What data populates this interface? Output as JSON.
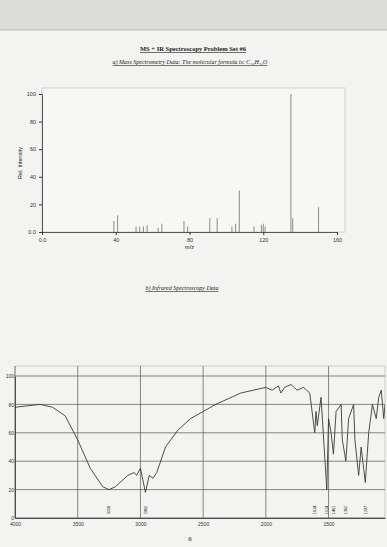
{
  "header": {
    "title": "MS + IR Spectroscopy Problem Set #6"
  },
  "footer": {
    "page": "6"
  },
  "chart_data": [
    {
      "type": "stem",
      "title": "a) Mass Spectrometry Data: The molecular formula is: C₁₀H₁₄O",
      "x_label": "m/z",
      "y_label": "Rel. Intensity",
      "x": [
        39,
        41,
        51,
        53,
        55,
        57,
        63,
        65,
        77,
        79,
        91,
        95,
        103,
        105,
        107,
        115,
        119,
        120,
        121,
        135,
        136,
        150
      ],
      "values": [
        8,
        12,
        4,
        4,
        4,
        5,
        3,
        6,
        8,
        4,
        10,
        10,
        4,
        6,
        30,
        4,
        5,
        6,
        4,
        100,
        10,
        18
      ],
      "color": "#8a8a8a",
      "xlim": [
        0,
        160
      ],
      "xticks": [
        {
          "value": 0,
          "label": "0.0"
        },
        40,
        80,
        120,
        160
      ],
      "ylim": [
        0,
        100
      ],
      "yticks": [
        {
          "value": 0,
          "label": "0.0"
        },
        20,
        40,
        60,
        80,
        100
      ],
      "grid": false
    },
    {
      "type": "line",
      "title": "b) Infrared Spectroscopy Data",
      "x": [
        4000,
        3900,
        3800,
        3700,
        3600,
        3500,
        3400,
        3300,
        3250,
        3200,
        3100,
        3050,
        3030,
        3000,
        2960,
        2930,
        2900,
        2870,
        2800,
        2700,
        2600,
        2500,
        2400,
        2300,
        2200,
        2100,
        2000,
        1950,
        1900,
        1880,
        1850,
        1800,
        1750,
        1700,
        1650,
        1610,
        1600,
        1590,
        1560,
        1514,
        1500,
        1480,
        1461,
        1440,
        1400,
        1390,
        1362,
        1340,
        1300,
        1290,
        1260,
        1240,
        1207,
        1180,
        1150,
        1120,
        1100,
        1080,
        1060,
        1050
      ],
      "values": [
        78,
        79,
        80,
        78,
        72,
        55,
        35,
        22,
        20,
        22,
        30,
        32,
        30,
        35,
        18,
        30,
        28,
        32,
        50,
        62,
        70,
        75,
        80,
        84,
        88,
        90,
        92,
        90,
        93,
        88,
        92,
        94,
        90,
        92,
        88,
        60,
        75,
        65,
        85,
        20,
        70,
        60,
        45,
        75,
        80,
        55,
        40,
        70,
        80,
        55,
        30,
        50,
        25,
        60,
        80,
        70,
        85,
        90,
        70,
        80
      ],
      "color": "#3a3a3a",
      "peak_labels": [
        3258,
        2962,
        1614,
        1514,
        1461,
        1362,
        1207
      ],
      "xlim": [
        4000,
        1050
      ],
      "xticks": [
        4000,
        3500,
        3000,
        2500,
        2000,
        1500
      ],
      "ylim": [
        0,
        100
      ],
      "yticks": [
        0,
        20,
        40,
        60,
        80,
        100
      ],
      "grid": true
    }
  ]
}
